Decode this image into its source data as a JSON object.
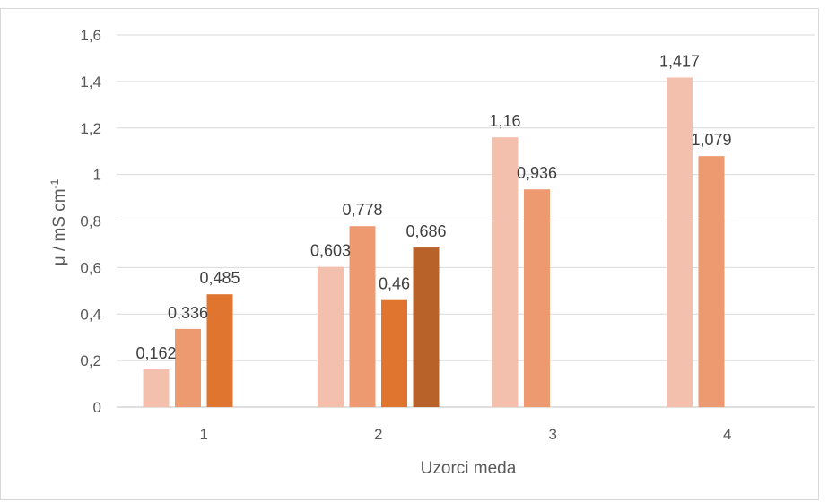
{
  "chart_data": {
    "type": "bar",
    "categories": [
      "1",
      "2",
      "3",
      "4"
    ],
    "series": [
      {
        "color": "#F4C0AE",
        "values": [
          0.162,
          0.603,
          1.16,
          1.417
        ],
        "labels": [
          "0,162",
          "0,603",
          "1,16",
          "1,417"
        ]
      },
      {
        "color": "#EE9A70",
        "values": [
          0.336,
          0.778,
          0.936,
          1.079
        ],
        "labels": [
          "0,336",
          "0,778",
          "0,936",
          "1,079"
        ]
      },
      {
        "color": "#E07530",
        "values": [
          0.485,
          0.46,
          null,
          null
        ],
        "labels": [
          "0,485",
          "0,46",
          "",
          ""
        ]
      },
      {
        "color": "#B86128",
        "values": [
          null,
          0.686,
          null,
          null
        ],
        "labels": [
          "",
          "0,686",
          "",
          ""
        ]
      }
    ],
    "ylim": [
      0,
      1.6
    ],
    "yticks": [
      "0",
      "0,2",
      "0,4",
      "0,6",
      "0,8",
      "1",
      "1,2",
      "1,4",
      "1,6"
    ],
    "xlabel": "Uzorci meda",
    "ylabel": "μ / mS cm",
    "ylabel_superscript": "-1",
    "grid": true,
    "legend": "none"
  }
}
